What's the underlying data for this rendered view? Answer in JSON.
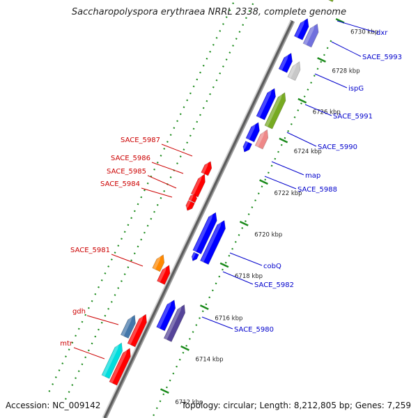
{
  "title": "Saccharopolyspora erythraea NRRL 2338, complete genome",
  "footer": {
    "accession": "Accession: NC_009142",
    "summary": "Topology: circular; Length: 8,212,805 bp; Genes: 7,259"
  },
  "colors": {
    "backbone": "#8c8c8c",
    "tick": "#1a8a1a",
    "forward_label": "#0000cc",
    "reverse_label": "#cc0000",
    "forward_gene": "#0000ff",
    "reverse_gene": "#ff0000"
  },
  "tick_labels": [
    "6712 kbp",
    "6714 kbp",
    "6716 kbp",
    "6718 kbp",
    "6720 kbp",
    "6722 kbp",
    "6724 kbp",
    "6726 kbp",
    "6728 kbp",
    "6730 kbp"
  ],
  "forward_labels": [
    "dxr",
    "SACE_5993",
    "ispG",
    "SACE_5991",
    "SACE_5990",
    "map",
    "SACE_5988",
    "cobQ",
    "SACE_5982",
    "SACE_5980"
  ],
  "reverse_labels": [
    "SACE_5987",
    "SACE_5986",
    "SACE_5985",
    "SACE_5984",
    "SACE_5981",
    "gdh",
    "mtr"
  ]
}
